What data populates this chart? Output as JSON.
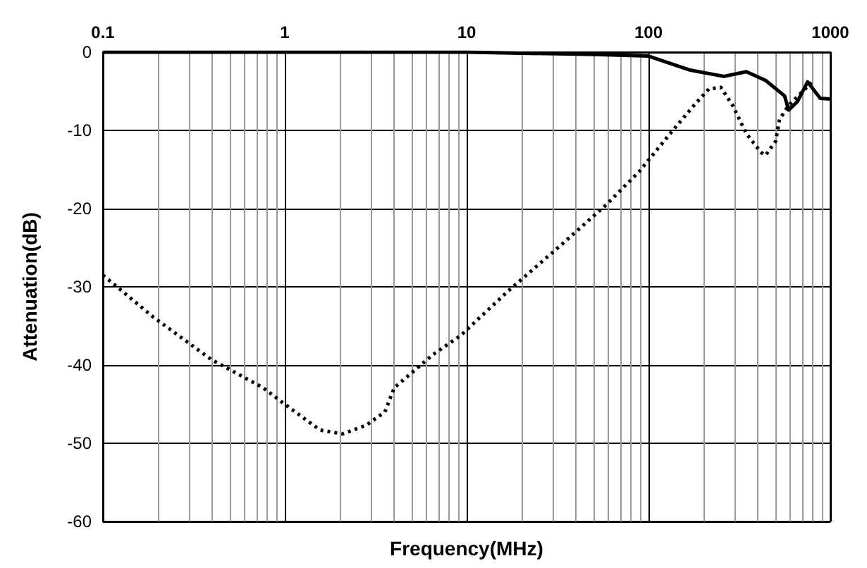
{
  "chart_data": {
    "type": "line",
    "xlabel": "Frequency(MHz)",
    "ylabel": "Attenuation(dB)",
    "xlim": [
      0.1,
      1000
    ],
    "xticks": [
      0.1,
      1,
      10,
      100,
      1000
    ],
    "ylim": [
      -60,
      0
    ],
    "yticks": [
      -60,
      -50,
      -40,
      -30,
      -20,
      -10,
      0
    ],
    "log": "x",
    "grid": true,
    "marker": "none",
    "series": [
      {
        "color": "#000000",
        "line_style": "solid",
        "x": [
          0.1,
          1,
          10,
          50,
          100,
          170,
          260,
          345,
          440,
          560,
          590,
          660,
          750,
          880,
          1000
        ],
        "values": [
          0,
          0,
          0,
          -0.3,
          -0.5,
          -2.3,
          -3.1,
          -2.5,
          -3.6,
          -5.6,
          -7.4,
          -6.3,
          -3.8,
          -5.9,
          -6
        ]
      },
      {
        "color": "#000000",
        "line_style": "dotted",
        "x": [
          0.1,
          0.19,
          0.395,
          0.76,
          0.96,
          1.56,
          2.08,
          2.8,
          3.55,
          4.0,
          6.5,
          9.3,
          16.8,
          34.4,
          58.6,
          88.6,
          135,
          178,
          215,
          250,
          290,
          345,
          415,
          440,
          500,
          525,
          590,
          706,
          810
        ],
        "values": [
          -28.5,
          -33.9,
          -39.3,
          -42.9,
          -44.7,
          -48.3,
          -48.8,
          -47.7,
          -46,
          -42.9,
          -38.7,
          -36.2,
          -30.6,
          -24.3,
          -19.5,
          -15.3,
          -10.1,
          -6.8,
          -4.7,
          -4.5,
          -6.8,
          -10.4,
          -12.8,
          -13.2,
          -11.4,
          -8.6,
          -6.8,
          -5,
          -3.6
        ]
      }
    ]
  }
}
